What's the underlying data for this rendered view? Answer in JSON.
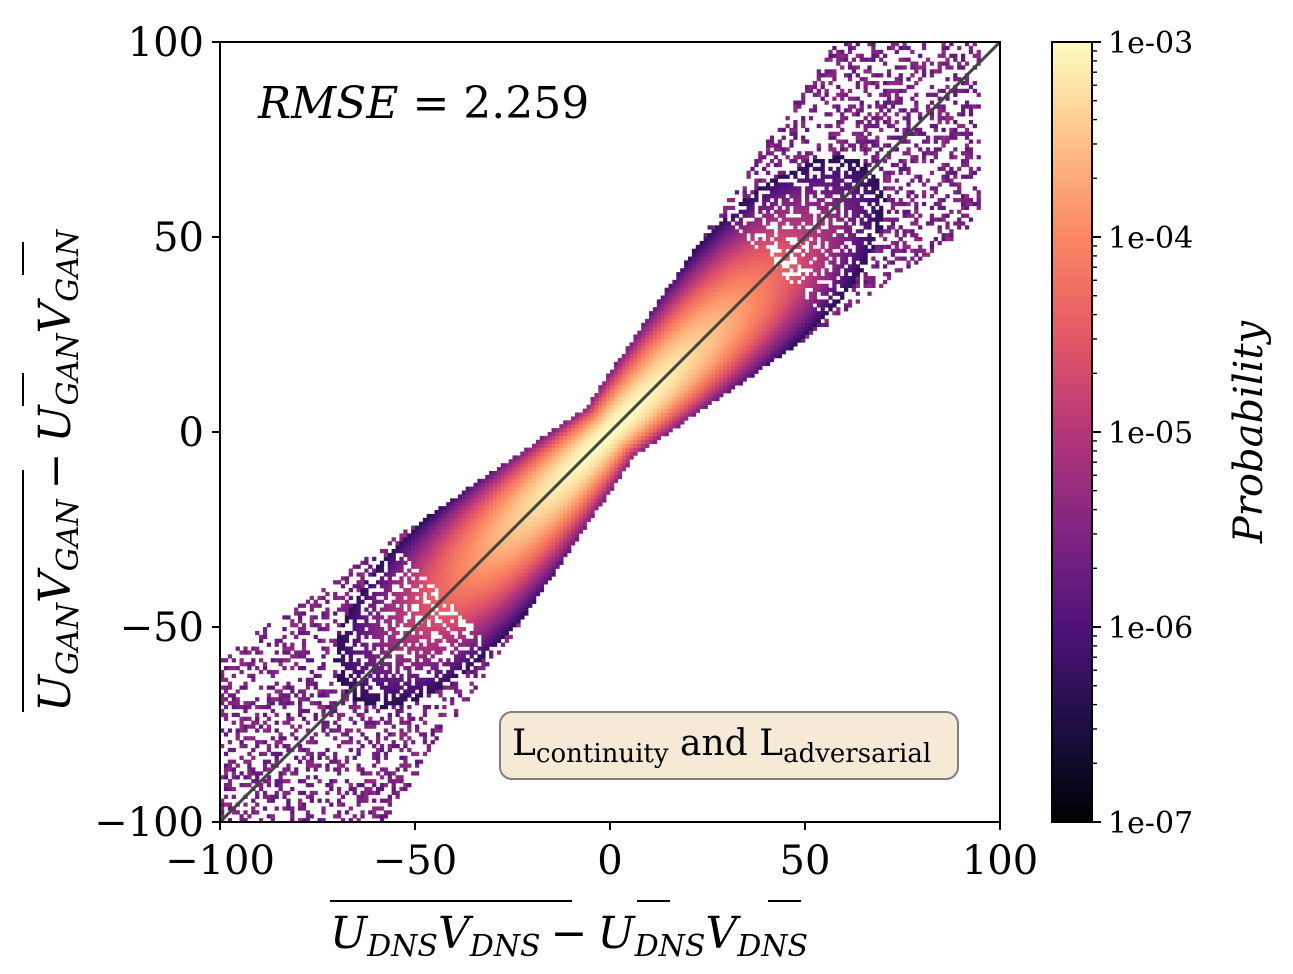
{
  "chart_data": {
    "type": "heatmap",
    "subtype": "2d-histogram",
    "xlim": [
      -100,
      100
    ],
    "ylim": [
      -100,
      100
    ],
    "xticks": [
      {
        "value": -100,
        "label": "−100"
      },
      {
        "value": -50,
        "label": "−50"
      },
      {
        "value": 0,
        "label": "0"
      },
      {
        "value": 50,
        "label": "50"
      },
      {
        "value": 100,
        "label": "100"
      }
    ],
    "yticks": [
      {
        "value": -100,
        "label": "−100"
      },
      {
        "value": -50,
        "label": "−50"
      },
      {
        "value": 0,
        "label": "0"
      },
      {
        "value": 50,
        "label": "50"
      },
      {
        "value": 100,
        "label": "100"
      }
    ],
    "xlabel": {
      "a_base": "U",
      "a_sub": "DNS",
      "b_base": "V",
      "b_sub": "DNS",
      "minus": "−",
      "c_base": "U",
      "c_sub": "DNS",
      "d_base": "V",
      "d_sub": "DNS"
    },
    "ylabel": {
      "a_base": "U",
      "a_sub": "GAN",
      "b_base": "V",
      "b_sub": "GAN",
      "minus": "−",
      "c_base": "U",
      "c_sub": "GAN",
      "d_base": "V",
      "d_sub": "GAN"
    },
    "annotation": {
      "lhs": "RMSE",
      "eq": " = ",
      "value": "2.259"
    },
    "legend_box": {
      "l1": "L",
      "s1": "continuity",
      "mid": " and ",
      "l2": "L",
      "s2": "adversarial",
      "facecolor": "#f6ead6",
      "edgecolor": "#808080"
    },
    "reference_line": {
      "slope": 1,
      "intercept": 0,
      "color": "#444444"
    },
    "distribution": {
      "slope": 1.0,
      "intercept": 0.0,
      "rmse": 2.259,
      "along_spread": 17,
      "x_range": [
        -100,
        95
      ]
    },
    "bins": 200,
    "colorbar": {
      "label": "Probability",
      "scale": "log",
      "range": [
        1e-07,
        0.001
      ],
      "ticks": [
        "1e-07",
        "1e-06",
        "1e-05",
        "1e-04",
        "1e-03"
      ],
      "colormap": "magma"
    },
    "colors": {
      "magma": [
        "#000004",
        "#1c1044",
        "#4f127b",
        "#812581",
        "#b5367a",
        "#e55964",
        "#fb8761",
        "#fec287",
        "#fcfdbf"
      ]
    }
  }
}
